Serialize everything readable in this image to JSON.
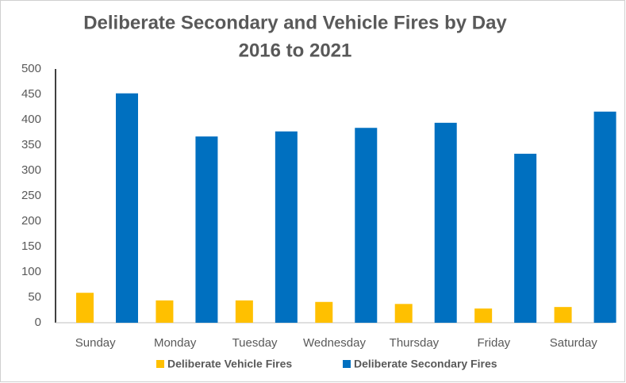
{
  "chart_data": {
    "type": "bar",
    "title": "Deliberate Secondary and Vehicle Fires by Day",
    "subtitle": "2016 to 2021",
    "categories": [
      "Sunday",
      "Monday",
      "Tuesday",
      "Wednesday",
      "Thursday",
      "Friday",
      "Saturday"
    ],
    "series": [
      {
        "name": "Deliberate Vehicle Fires",
        "color": "#FFC000",
        "values": [
          59,
          44,
          44,
          41,
          37,
          28,
          31
        ]
      },
      {
        "name": "Deliberate Secondary Fires",
        "color": "#0070C0",
        "values": [
          452,
          367,
          377,
          384,
          394,
          333,
          416
        ]
      }
    ],
    "ylim": [
      0,
      500
    ],
    "yticks": [
      0,
      50,
      100,
      150,
      200,
      250,
      300,
      350,
      400,
      450,
      500
    ],
    "grid": false,
    "legend": "bottom"
  }
}
